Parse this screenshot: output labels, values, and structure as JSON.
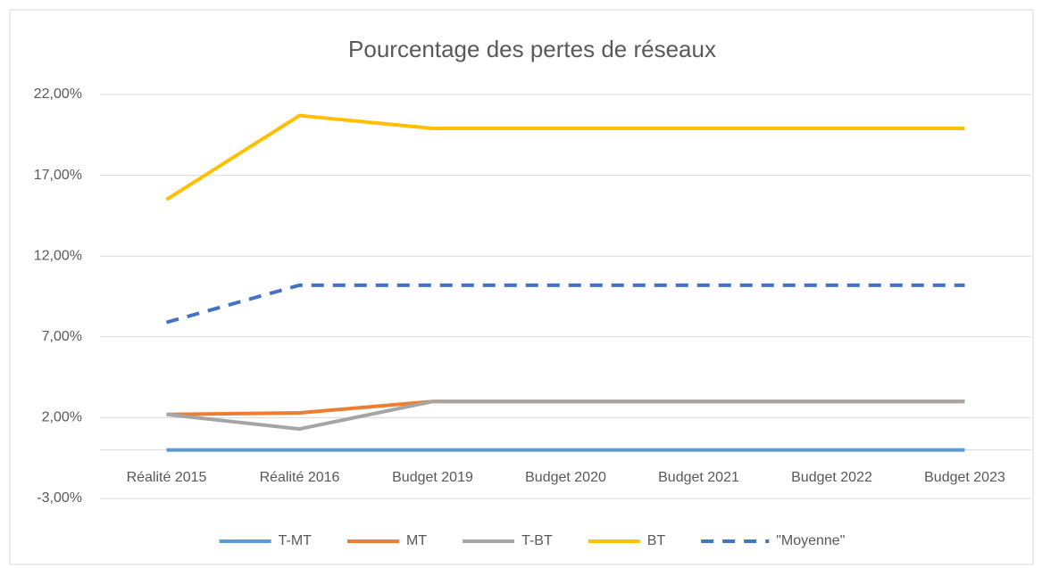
{
  "chart_data": {
    "type": "line",
    "title": "Pourcentage des pertes de réseaux",
    "categories": [
      "Réalité 2015",
      "Réalité 2016",
      "Budget 2019",
      "Budget 2020",
      "Budget 2021",
      "Budget 2022",
      "Budget 2023"
    ],
    "series": [
      {
        "name": "T-MT",
        "color": "#5b9bd5",
        "values": [
          0,
          0,
          0,
          0,
          0,
          0,
          0
        ]
      },
      {
        "name": "MT",
        "color": "#ed7d31",
        "values": [
          2.2,
          2.3,
          3.0,
          3.0,
          3.0,
          3.0,
          3.0
        ]
      },
      {
        "name": "T-BT",
        "color": "#a5a5a5",
        "values": [
          2.2,
          1.3,
          3.0,
          3.0,
          3.0,
          3.0,
          3.0
        ]
      },
      {
        "name": "BT",
        "color": "#ffc000",
        "values": [
          15.5,
          20.7,
          19.9,
          19.9,
          19.9,
          19.9,
          19.9
        ]
      },
      {
        "name": "\"Moyenne\"",
        "color": "#4472c4",
        "dashed": true,
        "values": [
          7.9,
          10.2,
          10.2,
          10.2,
          10.2,
          10.2,
          10.2
        ]
      }
    ],
    "ylim": [
      -3,
      22
    ],
    "yticks": [
      {
        "value": -3,
        "label": "-3,00%"
      },
      {
        "value": 2,
        "label": "2,00%"
      },
      {
        "value": 7,
        "label": "7,00%"
      },
      {
        "value": 12,
        "label": "12,00%"
      },
      {
        "value": 17,
        "label": "17,00%"
      },
      {
        "value": 22,
        "label": "22,00%"
      }
    ],
    "grid": true,
    "legend": "bottom"
  }
}
